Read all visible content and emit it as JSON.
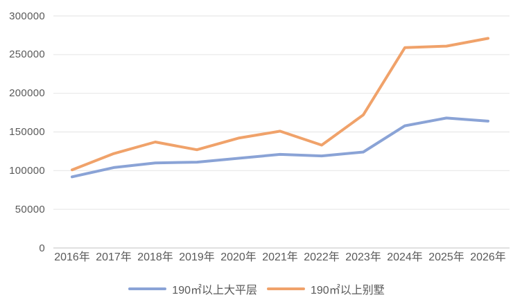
{
  "chart_data": {
    "type": "line",
    "title": "",
    "xlabel": "",
    "ylabel": "",
    "categories": [
      "2016年",
      "2017年",
      "2018年",
      "2019年",
      "2020年",
      "2021年",
      "2022年",
      "2023年",
      "2024年",
      "2025年",
      "2026年"
    ],
    "series": [
      {
        "name": "190㎡以上大平层",
        "color": "#8aa3d6",
        "values": [
          92000,
          104000,
          110000,
          111000,
          116000,
          121000,
          119000,
          124000,
          158000,
          168000,
          164000
        ]
      },
      {
        "name": "190㎡以上别墅",
        "color": "#f0a26a",
        "values": [
          101000,
          122000,
          137000,
          127000,
          142000,
          151000,
          133000,
          172000,
          259000,
          261000,
          271000
        ]
      }
    ],
    "ylim": [
      0,
      300000
    ],
    "yticks": [
      0,
      50000,
      100000,
      150000,
      200000,
      250000,
      300000
    ],
    "grid": true,
    "legend_position": "bottom",
    "markers": false
  },
  "colors": {
    "background": "#ffffff",
    "axis_text": "#595959",
    "gridline": "#e8e8e8",
    "baseline": "#d6d6d6"
  },
  "legend": {
    "items": [
      {
        "label": "190㎡以上大平层",
        "color": "#8aa3d6"
      },
      {
        "label": "190㎡以上别墅",
        "color": "#f0a26a"
      }
    ]
  }
}
